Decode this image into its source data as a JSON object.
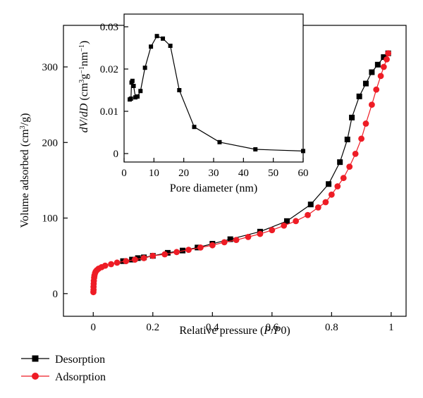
{
  "chart_data": [
    {
      "type": "scatter",
      "xlabel": "Relative pressure (P/P0)",
      "ylabel": "Volume adsorbed (cm³/g)",
      "xlim": [
        -0.1,
        1.05
      ],
      "ylim": [
        -30,
        355
      ],
      "xticks": [
        0,
        0.2,
        0.4,
        0.6,
        0.8,
        1
      ],
      "xtick_labels": [
        "0",
        "0.2",
        "0.4",
        "0.6",
        "0.8",
        "1"
      ],
      "yticks": [
        0,
        100,
        200,
        300
      ],
      "ytick_labels": [
        "0",
        "100",
        "200",
        "300"
      ],
      "grid": false,
      "legend_position": "bottom-left, outside",
      "series": [
        {
          "name": "Desorption",
          "color": "#000000",
          "marker": "square",
          "points": [
            [
              0.1,
              43
            ],
            [
              0.13,
              45
            ],
            [
              0.15,
              47
            ],
            [
              0.17,
              48
            ],
            [
              0.2,
              50
            ],
            [
              0.25,
              54
            ],
            [
              0.3,
              57
            ],
            [
              0.35,
              61
            ],
            [
              0.4,
              66
            ],
            [
              0.46,
              72
            ],
            [
              0.56,
              82
            ],
            [
              0.65,
              96
            ],
            [
              0.73,
              118
            ],
            [
              0.79,
              145
            ],
            [
              0.828,
              174
            ],
            [
              0.853,
              204
            ],
            [
              0.868,
              233
            ],
            [
              0.893,
              261
            ],
            [
              0.915,
              278
            ],
            [
              0.935,
              293
            ],
            [
              0.955,
              303
            ],
            [
              0.975,
              313
            ],
            [
              0.99,
              318
            ]
          ]
        },
        {
          "name": "Adsorption",
          "color": "#ee1c25",
          "marker": "circle",
          "points": [
            [
              0.0005,
              2
            ],
            [
              0.001,
              5
            ],
            [
              0.001,
              9
            ],
            [
              0.0015,
              13
            ],
            [
              0.002,
              17
            ],
            [
              0.003,
              21
            ],
            [
              0.004,
              24
            ],
            [
              0.006,
              27
            ],
            [
              0.008,
              29
            ],
            [
              0.012,
              31
            ],
            [
              0.018,
              33
            ],
            [
              0.028,
              35
            ],
            [
              0.04,
              37
            ],
            [
              0.06,
              39
            ],
            [
              0.08,
              41
            ],
            [
              0.11,
              43
            ],
            [
              0.14,
              45
            ],
            [
              0.17,
              47
            ],
            [
              0.2,
              50
            ],
            [
              0.24,
              52
            ],
            [
              0.28,
              55
            ],
            [
              0.32,
              58
            ],
            [
              0.36,
              61
            ],
            [
              0.4,
              64
            ],
            [
              0.44,
              68
            ],
            [
              0.48,
              71
            ],
            [
              0.52,
              75
            ],
            [
              0.56,
              79
            ],
            [
              0.6,
              84
            ],
            [
              0.64,
              90
            ],
            [
              0.68,
              96
            ],
            [
              0.72,
              104
            ],
            [
              0.755,
              114
            ],
            [
              0.78,
              121
            ],
            [
              0.8,
              131
            ],
            [
              0.82,
              142
            ],
            [
              0.84,
              153
            ],
            [
              0.86,
              168
            ],
            [
              0.88,
              185
            ],
            [
              0.9,
              205
            ],
            [
              0.915,
              225
            ],
            [
              0.935,
              250
            ],
            [
              0.95,
              270
            ],
            [
              0.965,
              288
            ],
            [
              0.975,
              300
            ],
            [
              0.985,
              310
            ],
            [
              0.99,
              318
            ]
          ]
        }
      ]
    },
    {
      "type": "line",
      "xlabel": "Pore diameter (nm)",
      "ylabel": "dV/dD (cm³g⁻¹nm⁻¹)",
      "xlim": [
        0,
        60
      ],
      "ylim": [
        -0.002,
        0.033
      ],
      "xticks": [
        0,
        10,
        20,
        30,
        40,
        50,
        60
      ],
      "xtick_labels": [
        "0",
        "10",
        "20",
        "30",
        "40",
        "50",
        "60"
      ],
      "yticks": [
        0,
        0.01,
        0.02,
        0.03
      ],
      "ytick_labels": [
        "0",
        "0.01",
        "0.02",
        "0.03"
      ],
      "grid": false,
      "series": [
        {
          "color": "#000000",
          "marker": "square",
          "points": [
            [
              1.9,
              0.0128
            ],
            [
              2.3,
              0.013
            ],
            [
              2.5,
              0.0168
            ],
            [
              2.8,
              0.0172
            ],
            [
              3.2,
              0.016
            ],
            [
              3.8,
              0.0133
            ],
            [
              4.5,
              0.0135
            ],
            [
              5.5,
              0.0148
            ],
            [
              7.0,
              0.0203
            ],
            [
              9.0,
              0.0253
            ],
            [
              11.0,
              0.0278
            ],
            [
              13.0,
              0.0272
            ],
            [
              15.5,
              0.0255
            ],
            [
              18.5,
              0.015
            ],
            [
              23.5,
              0.0063
            ],
            [
              32.0,
              0.0027
            ],
            [
              44.0,
              0.001
            ],
            [
              60.0,
              0.0006
            ]
          ]
        }
      ]
    }
  ]
}
